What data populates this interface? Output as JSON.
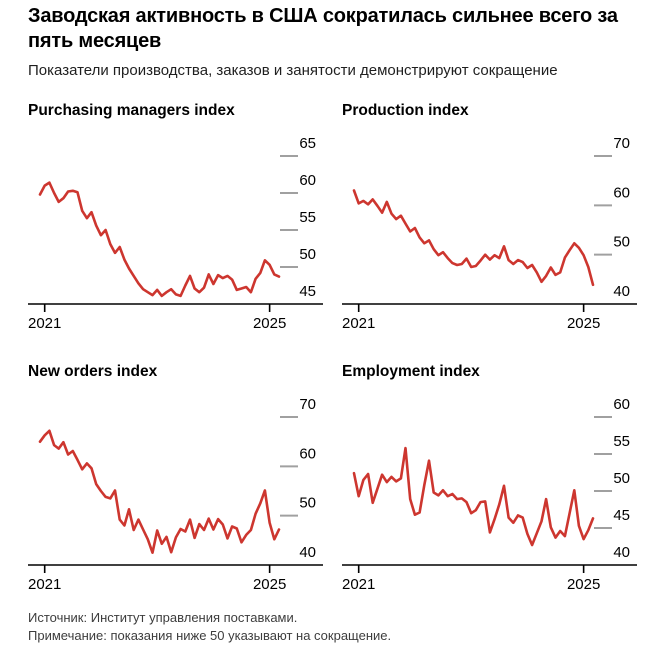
{
  "header": {
    "title": "Заводская активность в США сократилась сильнее всего за пять месяцев",
    "subtitle": "Показатели производства, заказов и занятости демонстрируют сокращение"
  },
  "footer": {
    "source": "Источник: Институт управления поставками.",
    "note": "Примечание: показания ниже 50 указывают на сокращение."
  },
  "colors": {
    "line": "#cd362f",
    "tick": "#a0a0a0",
    "axis": "#000000",
    "label": "#000000"
  },
  "chart_data": [
    {
      "type": "line",
      "title": "Purchasing managers index",
      "x_tick_labels": [
        "2021",
        "2025"
      ],
      "y_labels": [
        65,
        60,
        55,
        50,
        45
      ],
      "ylim": [
        45,
        65
      ],
      "grid": false,
      "values": [
        59.8,
        61.0,
        61.4,
        60.0,
        58.8,
        59.3,
        60.2,
        60.3,
        60.1,
        57.6,
        56.6,
        57.4,
        55.6,
        54.3,
        55.0,
        53.1,
        51.9,
        52.7,
        51.0,
        49.8,
        48.8,
        47.8,
        47.0,
        46.6,
        46.2,
        46.9,
        46.1,
        46.6,
        47.0,
        46.3,
        46.1,
        47.5,
        48.8,
        47.1,
        46.6,
        47.2,
        49.0,
        47.7,
        48.9,
        48.5,
        48.8,
        48.3,
        46.9,
        47.1,
        47.3,
        46.6,
        48.4,
        49.2,
        50.9,
        50.3,
        49.0,
        48.7
      ]
    },
    {
      "type": "line",
      "title": "Production index",
      "x_tick_labels": [
        "2021",
        "2025"
      ],
      "y_labels": [
        70,
        60,
        50,
        40
      ],
      "ylim": [
        40,
        70
      ],
      "grid": false,
      "values": [
        63.0,
        60.4,
        60.9,
        60.2,
        61.2,
        59.9,
        58.5,
        60.7,
        58.3,
        57.2,
        57.9,
        56.3,
        54.7,
        55.4,
        53.5,
        52.3,
        52.9,
        51.1,
        49.9,
        50.5,
        49.3,
        48.3,
        47.9,
        48.1,
        49.2,
        47.5,
        47.7,
        48.8,
        50.0,
        49.0,
        49.9,
        49.3,
        51.7,
        48.9,
        48.1,
        48.9,
        48.5,
        47.3,
        47.9,
        46.4,
        44.5,
        45.7,
        47.4,
        45.9,
        46.4,
        49.4,
        50.9,
        52.3,
        51.4,
        49.9,
        47.5,
        43.9
      ]
    },
    {
      "type": "line",
      "title": "New orders index",
      "x_tick_labels": [
        "2021",
        "2025"
      ],
      "y_labels": [
        70,
        60,
        50,
        40
      ],
      "ylim": [
        40,
        70
      ],
      "grid": false,
      "values": [
        65.0,
        66.3,
        67.2,
        64.3,
        63.6,
        64.9,
        62.4,
        63.1,
        61.3,
        59.4,
        60.6,
        59.6,
        56.4,
        55.0,
        53.8,
        53.5,
        55.1,
        49.2,
        48.0,
        51.3,
        47.1,
        49.2,
        47.2,
        45.2,
        42.5,
        47.0,
        44.3,
        45.7,
        42.6,
        45.6,
        47.3,
        46.8,
        49.2,
        45.5,
        48.3,
        47.1,
        49.4,
        47.2,
        49.3,
        48.2,
        45.4,
        47.8,
        47.4,
        44.6,
        46.1,
        47.1,
        50.4,
        52.5,
        55.1,
        48.6,
        45.2,
        47.2
      ]
    },
    {
      "type": "line",
      "title": "Employment index",
      "x_tick_labels": [
        "2021",
        "2025"
      ],
      "y_labels": [
        60,
        55,
        50,
        45,
        40
      ],
      "ylim": [
        40,
        60
      ],
      "grid": false,
      "values": [
        52.4,
        49.3,
        51.5,
        52.3,
        48.4,
        50.3,
        52.2,
        51.2,
        51.9,
        51.3,
        51.7,
        55.8,
        48.9,
        46.8,
        47.1,
        50.8,
        54.1,
        49.8,
        49.4,
        50.1,
        49.3,
        49.6,
        48.9,
        49.0,
        48.5,
        47.0,
        47.4,
        48.5,
        48.6,
        44.4,
        46.2,
        48.2,
        50.7,
        46.4,
        45.7,
        46.7,
        46.4,
        44.2,
        42.7,
        44.3,
        45.9,
        48.9,
        45.1,
        43.7,
        44.6,
        43.9,
        47.0,
        50.1,
        45.3,
        43.5,
        44.7,
        46.3
      ]
    }
  ]
}
